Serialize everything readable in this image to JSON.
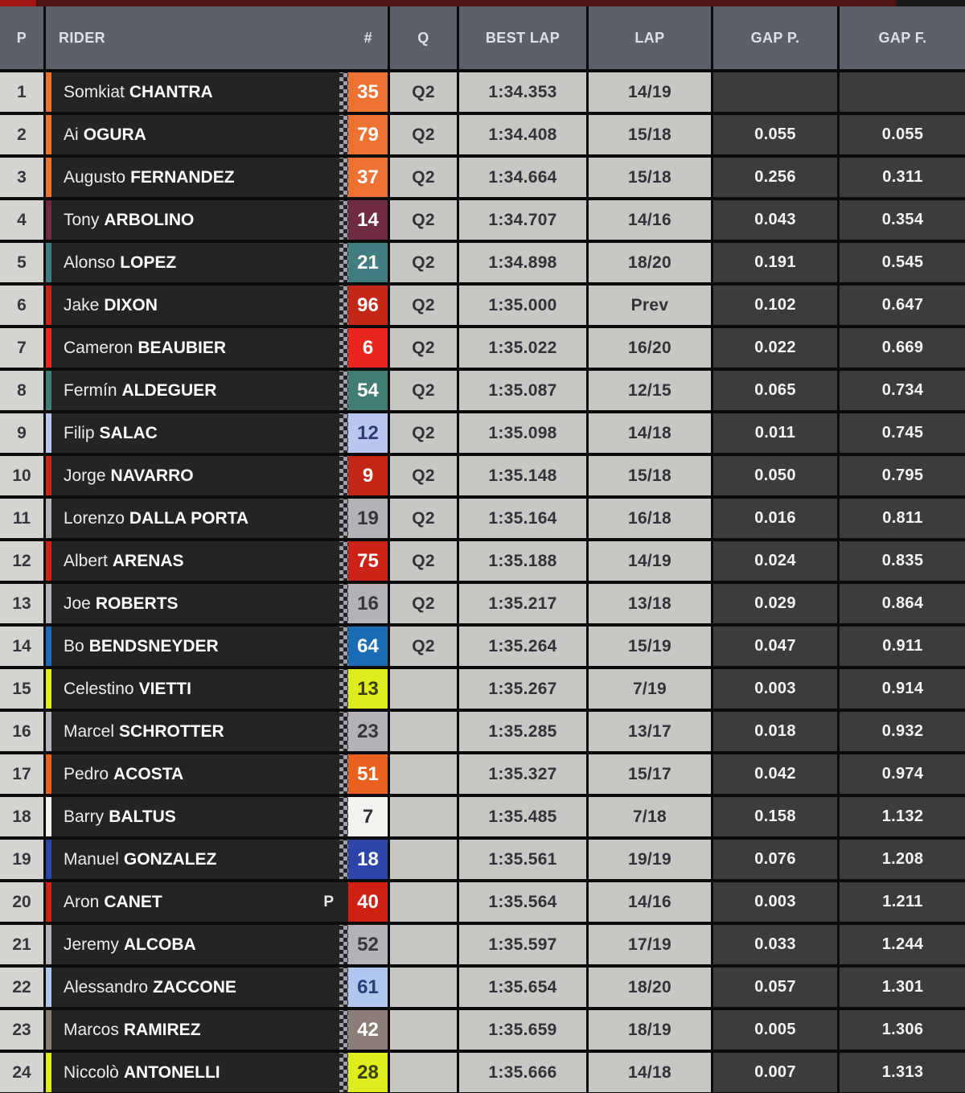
{
  "header": {
    "p": "P",
    "rider": "RIDER",
    "num": "#",
    "q": "Q",
    "best": "BEST LAP",
    "lap": "LAP",
    "gap_p": "GAP P.",
    "gap_f": "GAP F."
  },
  "colors": {
    "accent_red": "#a21510",
    "top_maroon": "#4f1311",
    "header_bg": "#5c6069",
    "row_bg": "#242424",
    "light_cell_bg": "#c9c7c4",
    "position_cell_bg": "#d6d4d1",
    "gap_cell_bg": "#3c3c3c",
    "grid_line": "#0b0b0b"
  },
  "rows": [
    {
      "pos": "1",
      "first": "Somkiat",
      "last": "CHANTRA",
      "num": "35",
      "num_bg": "#ee7231",
      "num_fg": "#ffffff",
      "pit": "",
      "q": "Q2",
      "best": "1:34.353",
      "lap": "14/19",
      "gap_p": "",
      "gap_f": ""
    },
    {
      "pos": "2",
      "first": "Ai",
      "last": "OGURA",
      "num": "79",
      "num_bg": "#ee7231",
      "num_fg": "#ffffff",
      "pit": "",
      "q": "Q2",
      "best": "1:34.408",
      "lap": "15/18",
      "gap_p": "0.055",
      "gap_f": "0.055"
    },
    {
      "pos": "3",
      "first": "Augusto",
      "last": "FERNANDEZ",
      "num": "37",
      "num_bg": "#ee7231",
      "num_fg": "#ffffff",
      "pit": "",
      "q": "Q2",
      "best": "1:34.664",
      "lap": "15/18",
      "gap_p": "0.256",
      "gap_f": "0.311"
    },
    {
      "pos": "4",
      "first": "Tony",
      "last": "ARBOLINO",
      "num": "14",
      "num_bg": "#6f2b44",
      "num_fg": "#ffffff",
      "pit": "",
      "q": "Q2",
      "best": "1:34.707",
      "lap": "14/16",
      "gap_p": "0.043",
      "gap_f": "0.354"
    },
    {
      "pos": "5",
      "first": "Alonso",
      "last": "LOPEZ",
      "num": "21",
      "num_bg": "#417c80",
      "num_fg": "#ffffff",
      "pit": "",
      "q": "Q2",
      "best": "1:34.898",
      "lap": "18/20",
      "gap_p": "0.191",
      "gap_f": "0.545"
    },
    {
      "pos": "6",
      "first": "Jake",
      "last": "DIXON",
      "num": "96",
      "num_bg": "#c42618",
      "num_fg": "#ffffff",
      "pit": "",
      "q": "Q2",
      "best": "1:35.000",
      "lap": "Prev",
      "gap_p": "0.102",
      "gap_f": "0.647"
    },
    {
      "pos": "7",
      "first": "Cameron",
      "last": "BEAUBIER",
      "num": "6",
      "num_bg": "#e8281e",
      "num_fg": "#ffffff",
      "pit": "",
      "q": "Q2",
      "best": "1:35.022",
      "lap": "16/20",
      "gap_p": "0.022",
      "gap_f": "0.669"
    },
    {
      "pos": "8",
      "first": "Fermín",
      "last": "ALDEGUER",
      "num": "54",
      "num_bg": "#417c75",
      "num_fg": "#ffffff",
      "pit": "",
      "q": "Q2",
      "best": "1:35.087",
      "lap": "12/15",
      "gap_p": "0.065",
      "gap_f": "0.734"
    },
    {
      "pos": "9",
      "first": "Filip",
      "last": "SALAC",
      "num": "12",
      "num_bg": "#b9c6f0",
      "num_fg": "#2b3e74",
      "pit": "",
      "q": "Q2",
      "best": "1:35.098",
      "lap": "14/18",
      "gap_p": "0.011",
      "gap_f": "0.745"
    },
    {
      "pos": "10",
      "first": "Jorge",
      "last": "NAVARRO",
      "num": "9",
      "num_bg": "#c42618",
      "num_fg": "#ffffff",
      "pit": "",
      "q": "Q2",
      "best": "1:35.148",
      "lap": "15/18",
      "gap_p": "0.050",
      "gap_f": "0.795"
    },
    {
      "pos": "11",
      "first": "Lorenzo",
      "last": "DALLA PORTA",
      "num": "19",
      "num_bg": "#b4b2b6",
      "num_fg": "#34373c",
      "pit": "",
      "q": "Q2",
      "best": "1:35.164",
      "lap": "16/18",
      "gap_p": "0.016",
      "gap_f": "0.811"
    },
    {
      "pos": "12",
      "first": "Albert",
      "last": "ARENAS",
      "num": "75",
      "num_bg": "#cc2318",
      "num_fg": "#ffffff",
      "pit": "",
      "q": "Q2",
      "best": "1:35.188",
      "lap": "14/19",
      "gap_p": "0.024",
      "gap_f": "0.835"
    },
    {
      "pos": "13",
      "first": "Joe",
      "last": "ROBERTS",
      "num": "16",
      "num_bg": "#b4b2b6",
      "num_fg": "#34373c",
      "pit": "",
      "q": "Q2",
      "best": "1:35.217",
      "lap": "13/18",
      "gap_p": "0.029",
      "gap_f": "0.864"
    },
    {
      "pos": "14",
      "first": "Bo",
      "last": "BENDSNEYDER",
      "num": "64",
      "num_bg": "#1a6db5",
      "num_fg": "#ffffff",
      "pit": "",
      "q": "Q2",
      "best": "1:35.264",
      "lap": "15/19",
      "gap_p": "0.047",
      "gap_f": "0.911"
    },
    {
      "pos": "15",
      "first": "Celestino",
      "last": "VIETTI",
      "num": "13",
      "num_bg": "#dfed1f",
      "num_fg": "#3a3f12",
      "pit": "",
      "q": "",
      "best": "1:35.267",
      "lap": "7/19",
      "gap_p": "0.003",
      "gap_f": "0.914"
    },
    {
      "pos": "16",
      "first": "Marcel",
      "last": "SCHROTTER",
      "num": "23",
      "num_bg": "#b4b2b6",
      "num_fg": "#34373c",
      "pit": "",
      "q": "",
      "best": "1:35.285",
      "lap": "13/17",
      "gap_p": "0.018",
      "gap_f": "0.932"
    },
    {
      "pos": "17",
      "first": "Pedro",
      "last": "ACOSTA",
      "num": "51",
      "num_bg": "#e8611f",
      "num_fg": "#ffffff",
      "pit": "",
      "q": "",
      "best": "1:35.327",
      "lap": "15/17",
      "gap_p": "0.042",
      "gap_f": "0.974"
    },
    {
      "pos": "18",
      "first": "Barry",
      "last": "BALTUS",
      "num": "7",
      "num_bg": "#f4f2ef",
      "num_fg": "#2e3136",
      "pit": "",
      "q": "",
      "best": "1:35.485",
      "lap": "7/18",
      "gap_p": "0.158",
      "gap_f": "1.132"
    },
    {
      "pos": "19",
      "first": "Manuel",
      "last": "GONZALEZ",
      "num": "18",
      "num_bg": "#2b46a8",
      "num_fg": "#ffffff",
      "pit": "",
      "q": "",
      "best": "1:35.561",
      "lap": "19/19",
      "gap_p": "0.076",
      "gap_f": "1.208"
    },
    {
      "pos": "20",
      "first": "Aron",
      "last": "CANET",
      "num": "40",
      "num_bg": "#cf2014",
      "num_fg": "#ffffff",
      "pit": "P",
      "q": "",
      "best": "1:35.564",
      "lap": "14/16",
      "gap_p": "0.003",
      "gap_f": "1.211"
    },
    {
      "pos": "21",
      "first": "Jeremy",
      "last": "ALCOBA",
      "num": "52",
      "num_bg": "#b4b2b6",
      "num_fg": "#34373c",
      "pit": "",
      "q": "",
      "best": "1:35.597",
      "lap": "17/19",
      "gap_p": "0.033",
      "gap_f": "1.244"
    },
    {
      "pos": "22",
      "first": "Alessandro",
      "last": "ZACCONE",
      "num": "61",
      "num_bg": "#b0c6ee",
      "num_fg": "#2b3e74",
      "pit": "",
      "q": "",
      "best": "1:35.654",
      "lap": "18/20",
      "gap_p": "0.057",
      "gap_f": "1.301"
    },
    {
      "pos": "23",
      "first": "Marcos",
      "last": "RAMIREZ",
      "num": "42",
      "num_bg": "#8b7e76",
      "num_fg": "#ffffff",
      "pit": "",
      "q": "",
      "best": "1:35.659",
      "lap": "18/19",
      "gap_p": "0.005",
      "gap_f": "1.306"
    },
    {
      "pos": "24",
      "first": "Niccolò",
      "last": "ANTONELLI",
      "num": "28",
      "num_bg": "#dfed1f",
      "num_fg": "#3a3f12",
      "pit": "",
      "q": "",
      "best": "1:35.666",
      "lap": "14/18",
      "gap_p": "0.007",
      "gap_f": "1.313"
    }
  ]
}
